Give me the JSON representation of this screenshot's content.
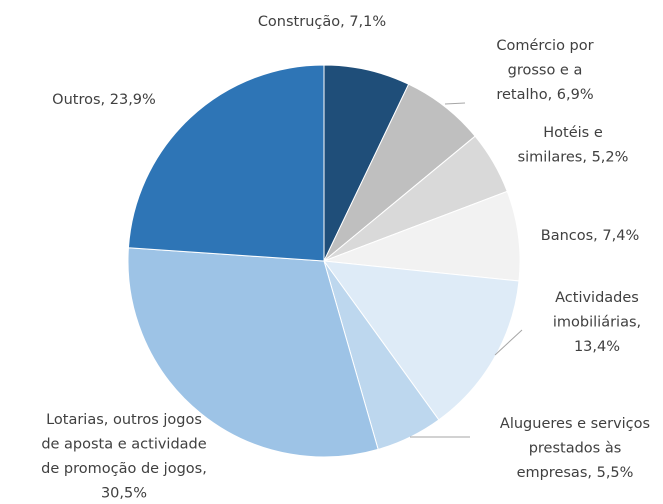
{
  "chart_data": {
    "type": "pie",
    "categories": [
      "Construção",
      "Comércio por grosso e a retalho",
      "Hotéis e similares",
      "Bancos",
      "Actividades imobiliárias",
      "Alugueres e serviços prestados às empresas",
      "Lotarias, outros jogos de aposta e actividade de promoção de jogos",
      "Outros"
    ],
    "values": [
      7.1,
      6.9,
      5.2,
      7.4,
      13.4,
      5.5,
      30.5,
      23.9
    ],
    "value_labels": [
      "Construção, 7,1%",
      "Comércio por\ngrosso e a\nretalho, 6,9%",
      "Hotéis e\nsimilares, 5,2%",
      "Bancos, 7,4%",
      "Actividades\nimobiliárias,\n13,4%",
      "Alugueres e serviços\nprestados às\nempresas, 5,5%",
      "Lotarias, outros jogos\nde aposta e actividade\nde promoção de jogos,\n30,5%",
      "Outros, 23,9%"
    ],
    "colors": [
      "#1f4e79",
      "#bfbfbf",
      "#d9d9d9",
      "#f2f2f2",
      "#deebf7",
      "#bdd7ee",
      "#9dc3e6",
      "#2e75b6"
    ]
  }
}
